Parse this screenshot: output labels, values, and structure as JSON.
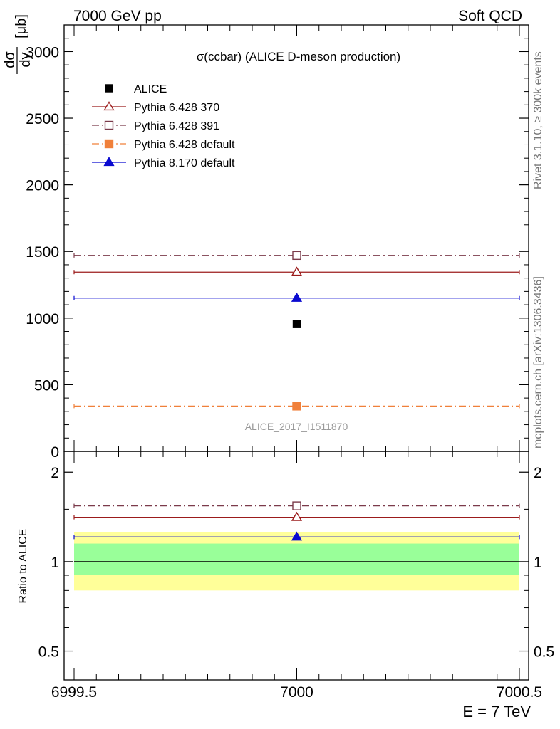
{
  "header": {
    "left": "7000 GeV pp",
    "right": "Soft QCD"
  },
  "side_labels": {
    "rivet": "Rivet 3.1.10, ≥ 300k events",
    "mcplots": "mcplots.cern.ch [arXiv:1306.3436]"
  },
  "chart_data": [
    {
      "type": "scatter",
      "title": "σ(ccbar) (ALICE D-meson production)",
      "analysis_label": "ALICE_2017_I1511870",
      "ylabel_num": "dσ",
      "ylabel_den": "dy",
      "ylabel_unit": "[μb]",
      "xlim": [
        6999.5,
        7000.5
      ],
      "ylim": [
        0,
        3200
      ],
      "y_ticks": [
        0,
        500,
        1000,
        1500,
        2000,
        2500,
        3000
      ],
      "y_tick_labels": [
        "0",
        "500",
        "1000",
        "1500",
        "2000",
        "2500",
        "3000"
      ],
      "legend_position": "top-left",
      "series": [
        {
          "name": "ALICE",
          "x": [
            7000
          ],
          "y": [
            955
          ],
          "color": "#000000",
          "marker": "square-filled",
          "line": "none"
        },
        {
          "name": "Pythia 6.428 370",
          "x": [
            7000
          ],
          "y": [
            1345
          ],
          "color": "#9b1b1b",
          "marker": "triangle-open",
          "line": "solid"
        },
        {
          "name": "Pythia 6.428 391",
          "x": [
            7000
          ],
          "y": [
            1470
          ],
          "color": "#7b3b4b",
          "marker": "square-open",
          "line": "dashdot"
        },
        {
          "name": "Pythia 6.428 default",
          "x": [
            7000
          ],
          "y": [
            340
          ],
          "color": "#f0803a",
          "marker": "square-filled",
          "line": "dashdot"
        },
        {
          "name": "Pythia 8.170 default",
          "x": [
            7000
          ],
          "y": [
            1150
          ],
          "color": "#0a0ad0",
          "marker": "triangle-filled",
          "line": "solid"
        }
      ]
    },
    {
      "type": "scatter",
      "ylabel": "Ratio to ALICE",
      "xlabel": "E = 7 TeV",
      "xlim": [
        6999.5,
        7000.5
      ],
      "ylim": [
        0.4,
        2.35
      ],
      "log_y": true,
      "x_ticks": [
        6999.5,
        7000,
        7000.5
      ],
      "x_tick_labels": [
        "6999.5",
        "7000",
        "7000.5"
      ],
      "y_ticks": [
        0.5,
        1,
        2
      ],
      "y_tick_labels": [
        "0.5",
        "1",
        "2"
      ],
      "bands": [
        {
          "name": "total uncertainty",
          "low": 0.8,
          "high": 1.26,
          "color": "#ffff99"
        },
        {
          "name": "stat uncertainty",
          "low": 0.9,
          "high": 1.15,
          "color": "#99ff99"
        }
      ],
      "series": [
        {
          "name": "Pythia 6.428 370",
          "x": [
            7000
          ],
          "y": [
            1.41
          ],
          "color": "#9b1b1b",
          "marker": "triangle-open",
          "line": "solid"
        },
        {
          "name": "Pythia 6.428 391",
          "x": [
            7000
          ],
          "y": [
            1.54
          ],
          "color": "#7b3b4b",
          "marker": "square-open",
          "line": "dashdot"
        },
        {
          "name": "Pythia 8.170 default",
          "x": [
            7000
          ],
          "y": [
            1.21
          ],
          "color": "#0a0ad0",
          "marker": "triangle-filled",
          "line": "solid"
        }
      ]
    }
  ]
}
